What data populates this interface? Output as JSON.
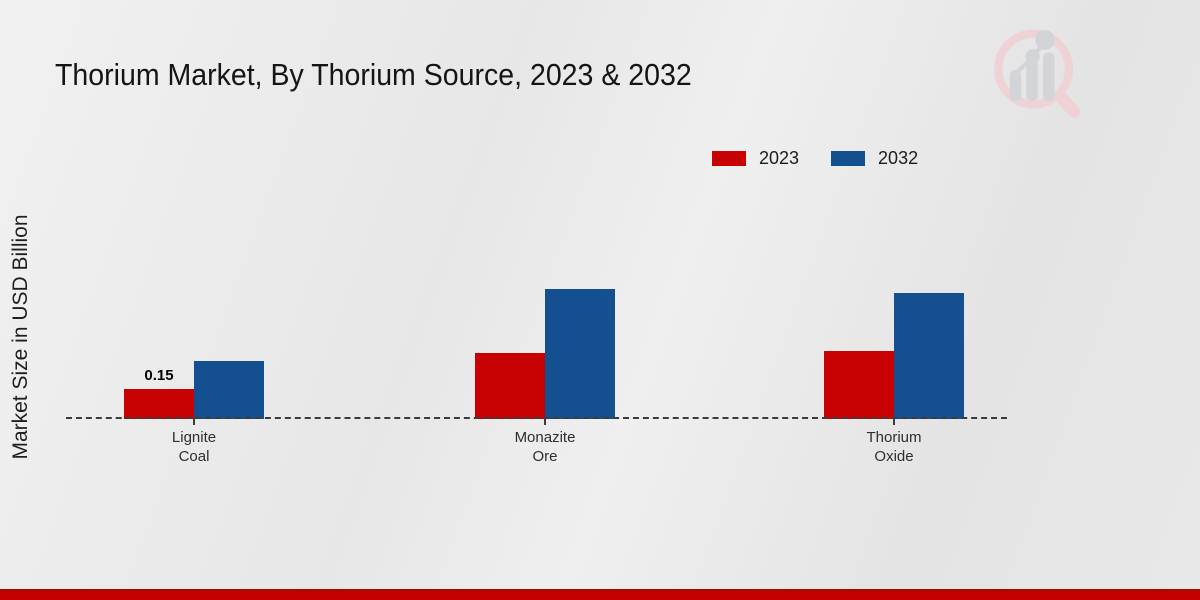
{
  "header": {
    "title": "Thorium Market, By Thorium Source, 2023 & 2032"
  },
  "axis": {
    "y_label": "Market Size in USD Billion"
  },
  "chart_data": {
    "type": "bar",
    "title": "Thorium Market, By Thorium Source, 2023 & 2032",
    "xlabel": "",
    "ylabel": "Market Size in USD Billion",
    "categories": [
      "Lignite Coal",
      "Monazite Ore",
      "Thorium Oxide"
    ],
    "category_lines": [
      [
        "Lignite",
        "Coal"
      ],
      [
        "Monazite",
        "Ore"
      ],
      [
        "Thorium",
        "Oxide"
      ]
    ],
    "series": [
      {
        "name": "2023",
        "color": "#c80202",
        "values": [
          0.15,
          0.33,
          0.34
        ]
      },
      {
        "name": "2032",
        "color": "#14508f",
        "values": [
          0.29,
          0.65,
          0.63
        ]
      }
    ],
    "data_labels": [
      {
        "series_index": 0,
        "category_index": 0,
        "text": "0.15"
      }
    ],
    "ylim": [
      0,
      0.9
    ],
    "grid": false,
    "legend_position": "top-right",
    "baseline_style": "dashed"
  },
  "footer": {
    "bar_color": "#c40000"
  },
  "icons": {
    "watermark": "magnifier-bar-chart-logo"
  }
}
